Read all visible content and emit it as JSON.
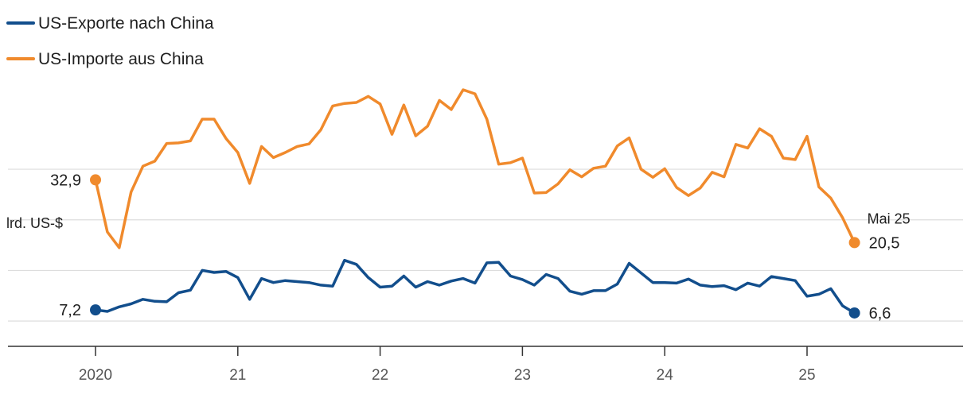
{
  "chart_data": {
    "type": "line",
    "ylabel": "lrd. US-$",
    "ylim": [
      0,
      45
    ],
    "gridlines": [
      5,
      15,
      25,
      35
    ],
    "grid": true,
    "legend_position": "top-left",
    "x_ticks": [
      {
        "label": "2020",
        "month": 0
      },
      {
        "label": "21",
        "month": 12
      },
      {
        "label": "22",
        "month": 24
      },
      {
        "label": "23",
        "month": 36
      },
      {
        "label": "24",
        "month": 48
      },
      {
        "label": "25",
        "month": 60
      }
    ],
    "x_range": [
      -7,
      73
    ],
    "last_date_label": "Mai 25",
    "series": [
      {
        "name": "US-Exporte nach China",
        "color": "#124e8c",
        "start_label": "7,2",
        "end_label": "6,6",
        "values": [
          7.2,
          6.9,
          7.8,
          8.4,
          9.3,
          8.9,
          8.8,
          10.6,
          11.1,
          15.0,
          14.6,
          14.8,
          13.6,
          9.3,
          13.4,
          12.6,
          13.0,
          12.8,
          12.6,
          12.1,
          11.9,
          17.0,
          16.2,
          13.6,
          11.7,
          11.9,
          13.9,
          11.7,
          12.8,
          12.1,
          12.9,
          13.4,
          12.5,
          16.5,
          16.6,
          13.9,
          13.2,
          12.1,
          14.2,
          13.4,
          10.9,
          10.3,
          11.0,
          11.0,
          12.3,
          16.4,
          14.5,
          12.6,
          12.6,
          12.5,
          13.3,
          12.1,
          11.8,
          12.0,
          11.2,
          12.5,
          11.9,
          13.8,
          13.4,
          13.0,
          9.9,
          10.3,
          11.4,
          8.0,
          6.6
        ]
      },
      {
        "name": "US-Importe aus China",
        "color": "#f08a2c",
        "start_label": "32,9",
        "end_label": "20,5",
        "values": [
          32.9,
          22.6,
          19.5,
          30.5,
          35.6,
          36.6,
          40.1,
          40.2,
          40.6,
          44.9,
          44.9,
          41.1,
          38.3,
          32.2,
          39.5,
          37.3,
          38.3,
          39.5,
          40.0,
          42.8,
          47.5,
          48.0,
          48.2,
          49.4,
          47.9,
          41.9,
          47.7,
          41.6,
          43.5,
          48.6,
          46.8,
          50.7,
          49.9,
          44.9,
          36.0,
          36.3,
          37.2,
          30.3,
          30.4,
          32.1,
          34.9,
          33.5,
          35.2,
          35.6,
          39.6,
          41.2,
          35.0,
          33.4,
          35.1,
          31.4,
          29.8,
          31.3,
          34.4,
          33.5,
          39.9,
          39.2,
          43.0,
          41.5,
          37.2,
          36.9,
          41.5,
          31.5,
          29.3,
          25.4,
          20.5
        ]
      }
    ]
  }
}
